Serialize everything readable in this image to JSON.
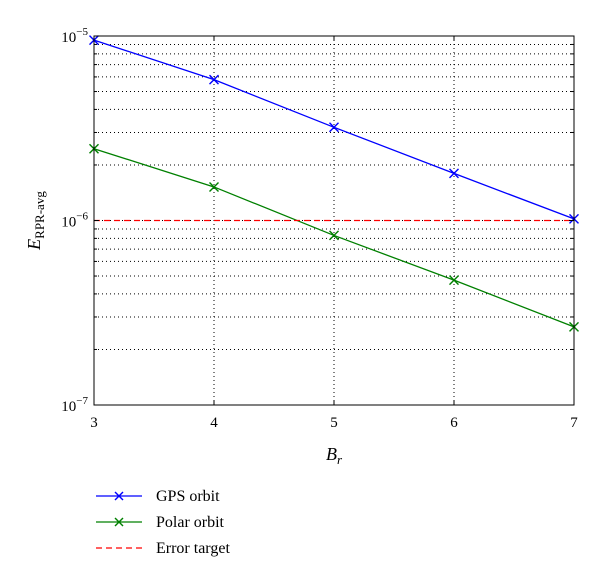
{
  "chart_data": {
    "type": "line",
    "xlabel": "B",
    "xlabel_sub": "r",
    "ylabel": "E",
    "ylabel_sub": "RPR-avg",
    "xlim": [
      3,
      7
    ],
    "ylim": [
      1e-07,
      1e-05
    ],
    "yscale": "log",
    "grid": true,
    "legend_position": "below",
    "x_ticks": [
      {
        "value": 3,
        "label": "3"
      },
      {
        "value": 4,
        "label": "4"
      },
      {
        "value": 5,
        "label": "5"
      },
      {
        "value": 6,
        "label": "6"
      },
      {
        "value": 7,
        "label": "7"
      }
    ],
    "y_ticks": [
      {
        "value": 1e-07,
        "base": "10",
        "exp": "−7"
      },
      {
        "value": 1e-06,
        "base": "10",
        "exp": "−6"
      },
      {
        "value": 1e-05,
        "base": "10",
        "exp": "−5"
      }
    ],
    "x": [
      3,
      4,
      5,
      6,
      7
    ],
    "series": [
      {
        "name": "GPS orbit",
        "color": "#0000ff",
        "style": "solid",
        "marker": "x",
        "values": [
          9.5e-06,
          5.8e-06,
          3.2e-06,
          1.8e-06,
          1.02e-06
        ]
      },
      {
        "name": "Polar orbit",
        "color": "#008000",
        "style": "solid",
        "marker": "x",
        "values": [
          2.45e-06,
          1.52e-06,
          8.3e-07,
          4.75e-07,
          2.65e-07
        ]
      },
      {
        "name": "Error target",
        "color": "#ff0000",
        "style": "dashed",
        "marker": "none",
        "values": [
          1e-06,
          1e-06,
          1e-06,
          1e-06,
          1e-06
        ]
      }
    ]
  }
}
